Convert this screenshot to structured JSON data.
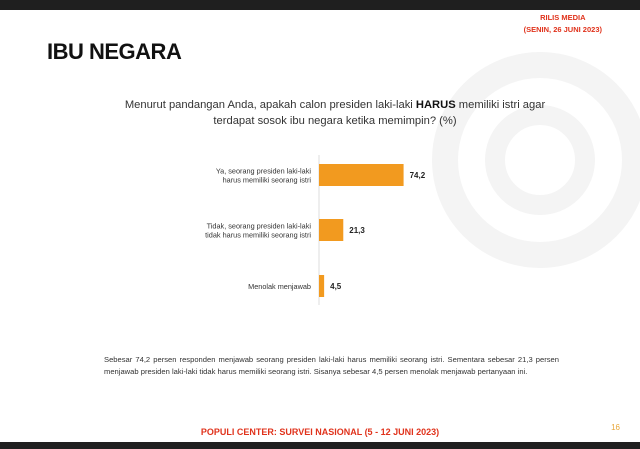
{
  "header": {
    "rilis_line1": "RILIS MEDIA",
    "rilis_line2": "(SENIN, 26 JUNI 2023)"
  },
  "title": "IBU NEGARA",
  "question": {
    "before": "Menurut pandangan Anda, apakah calon presiden laki-laki ",
    "emphasis": "HARUS",
    "after": " memiliki istri agar terdapat sosok ibu negara ketika memimpin? (%)"
  },
  "chart_data": {
    "type": "bar",
    "orientation": "horizontal",
    "categories": [
      [
        "Ya, seorang presiden laki-laki",
        "harus memiliki seorang istri"
      ],
      [
        "Tidak, seorang presiden laki-laki",
        "tidak harus memiliki seorang istri"
      ],
      [
        "Menolak menjawab"
      ]
    ],
    "values": [
      74.2,
      21.3,
      4.5
    ],
    "value_labels": [
      "74,2",
      "21,3",
      "4,5"
    ],
    "xlim": [
      0,
      100
    ],
    "grid": false,
    "legend": false,
    "color": "#f29a1f"
  },
  "description": "Sebesar 74,2 persen responden menjawab seorang presiden laki-laki harus memiliki seorang istri. Sementara sebesar 21,3 persen menjawab presiden laki-laki tidak harus memiliki seorang istri. Sisanya sebesar 4,5 persen menolak menjawab pertanyaan ini.",
  "footer": {
    "source": "POPULI CENTER: SURVEI NASIONAL (5 - 12 JUNI 2023)",
    "page_number": "16"
  },
  "colors": {
    "accent_red": "#e0321b",
    "bar_orange": "#f29a1f",
    "band_dark": "#1f1f1f"
  }
}
